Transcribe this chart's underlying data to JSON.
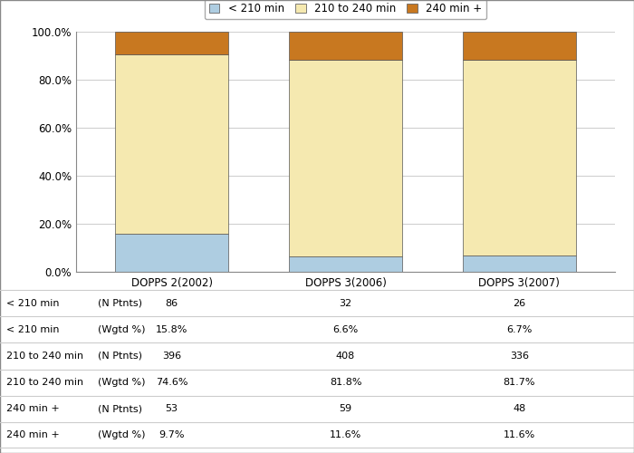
{
  "categories": [
    "DOPPS 2(2002)",
    "DOPPS 3(2006)",
    "DOPPS 3(2007)"
  ],
  "series": {
    "< 210 min": [
      15.8,
      6.6,
      6.7
    ],
    "210 to 240 min": [
      74.6,
      81.8,
      81.7
    ],
    "240 min +": [
      9.7,
      11.6,
      11.6
    ]
  },
  "colors": {
    "< 210 min": "#aecde1",
    "210 to 240 min": "#f5e9b0",
    "240 min +": "#c87820"
  },
  "legend_labels": [
    "< 210 min",
    "210 to 240 min",
    "240 min +"
  ],
  "ylim": [
    0,
    100
  ],
  "ytick_labels": [
    "0.0%",
    "20.0%",
    "40.0%",
    "60.0%",
    "80.0%",
    "100.0%"
  ],
  "ytick_vals": [
    0,
    20,
    40,
    60,
    80,
    100
  ],
  "table": {
    "row_labels": [
      [
        "< 210 min",
        "(N Ptnts)"
      ],
      [
        "< 210 min",
        "(Wgtd %)"
      ],
      [
        "210 to 240 min",
        "(N Ptnts)"
      ],
      [
        "210 to 240 min",
        "(Wgtd %)"
      ],
      [
        "240 min +",
        "(N Ptnts)"
      ],
      [
        "240 min +",
        "(Wgtd %)"
      ]
    ],
    "values": [
      [
        "86",
        "32",
        "26"
      ],
      [
        "15.8%",
        "6.6%",
        "6.7%"
      ],
      [
        "396",
        "408",
        "336"
      ],
      [
        "74.6%",
        "81.8%",
        "81.7%"
      ],
      [
        "53",
        "59",
        "48"
      ],
      [
        "9.7%",
        "11.6%",
        "11.6%"
      ]
    ]
  },
  "bar_width": 0.65,
  "bar_edge_color": "#555555",
  "background_color": "#ffffff",
  "grid_color": "#d0d0d0"
}
